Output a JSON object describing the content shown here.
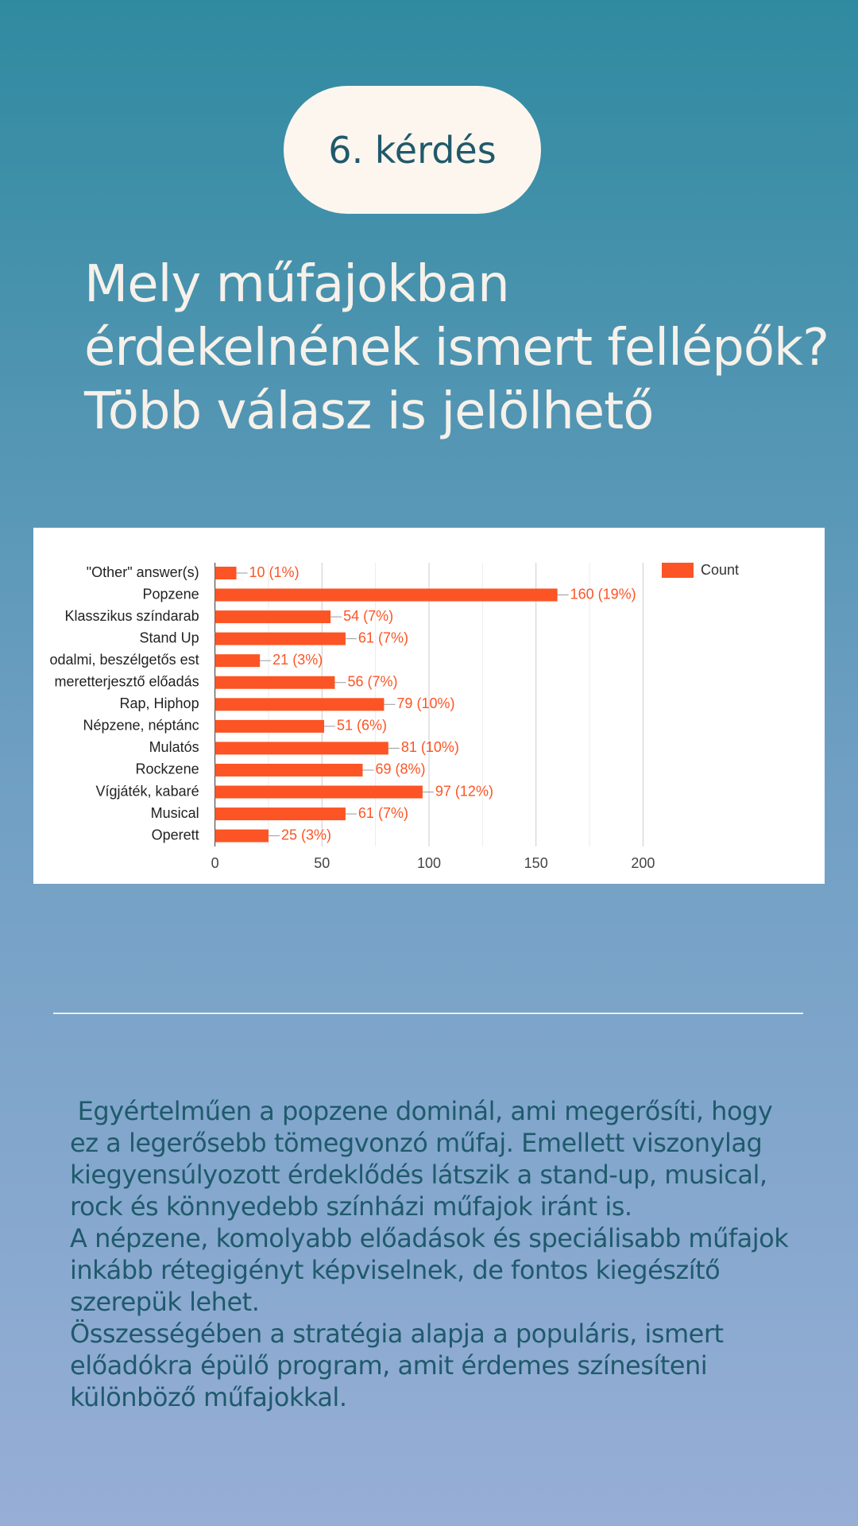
{
  "badge": "6. kérdés",
  "heading": [
    "Mely műfajokban",
    "érdekelnének ismert fellépők?",
    "Több válasz is jelölhető"
  ],
  "paragraphs": [
    " Egyértelműen a popzene dominál, ami megerősíti, hogy ez a legerősebb tömegvonzó műfaj. Emellett viszonylag kiegyensúlyozott érdeklődés látszik a stand-up, musical, rock és könnyedebb színházi műfajok iránt is.",
    "A népzene, komolyabb előadások és speciálisabb műfajok inkább rétegigényt képviselnek, de fontos kiegészítő szerepük lehet.",
    "Összességében a stratégia alapja a populáris, ismert előadókra épülő program, amit érdemes színesíteni különböző műfajokkal."
  ],
  "chart_data": {
    "type": "hbar",
    "categories": [
      "\"Other\" answer(s)",
      "Popzene",
      "Klasszikus színdarab",
      "Stand Up",
      "odalmi, beszélgetős est",
      "meretterjesztő előadás",
      "Rap, Hiphop",
      "Népzene, néptánc",
      "Mulatós",
      "Rockzene",
      "Vígjáték, kabaré",
      "Musical",
      "Operett"
    ],
    "series": [
      {
        "name": "Count",
        "color": "#fc5424",
        "values": [
          10,
          160,
          54,
          61,
          21,
          56,
          79,
          51,
          81,
          69,
          97,
          61,
          25
        ],
        "value_labels": [
          "10 (1%)",
          "160 (19%)",
          "54 (7%)",
          "61 (7%)",
          "21 (3%)",
          "56 (7%)",
          "79 (10%)",
          "51 (6%)",
          "81 (10%)",
          "69 (8%)",
          "97 (12%)",
          "61 (7%)",
          "25 (3%)"
        ]
      }
    ],
    "xlim": [
      0,
      225
    ],
    "xticks": [
      0,
      50,
      100,
      150,
      200
    ],
    "xminorticks": [
      25,
      75,
      125,
      175
    ],
    "grid": true,
    "legend": "top-right"
  }
}
